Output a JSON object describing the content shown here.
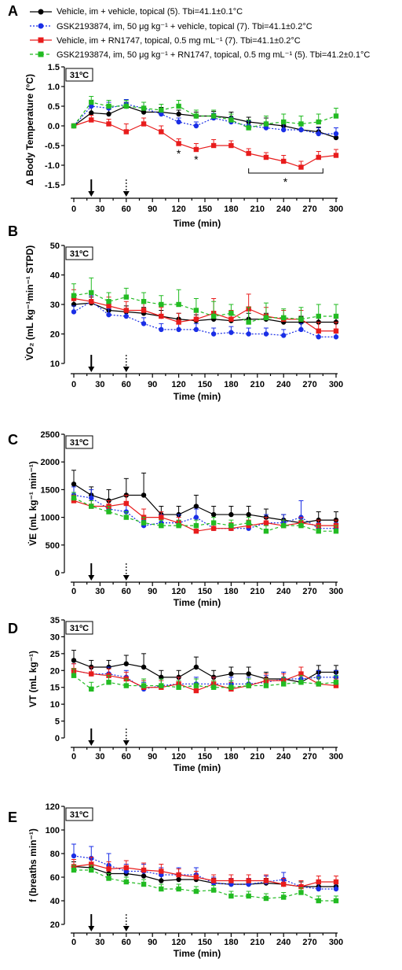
{
  "legend": [
    {
      "label": "Vehicle, im + vehicle, topical (5). Tbi=41.1±0.1°C",
      "color": "#000000",
      "marker": "circle",
      "dash": "solid"
    },
    {
      "label": "GSK2193874, im, 50 μg kg⁻¹ + vehicle, topical (7). Tbi=41.1±0.2°C",
      "color": "#1a2ee6",
      "marker": "circle",
      "dash": "dotted"
    },
    {
      "label": "Vehicle, im + RN1747, topical, 0.5 mg mL⁻¹ (7). Tbi=41.1±0.2°C",
      "color": "#e81c1c",
      "marker": "square",
      "dash": "solid"
    },
    {
      "label": "GSK2193874, im, 50 μg kg⁻¹ + RN1747, topical, 0.5 mg mL⁻¹ (5). Tbi=41.2±0.1°C",
      "color": "#22bb22",
      "marker": "square",
      "dash": "dashed"
    }
  ],
  "chart_data": [
    {
      "type": "line",
      "panel": "A",
      "temp_label": "31ºC",
      "ylabel": "Δ Body Temperature (°C)",
      "xlabel": "Time (min)",
      "ylim": [
        -1.5,
        1.5
      ],
      "yticks": [
        "1.5",
        "1.0",
        "0.5",
        "0.0",
        "-0.5",
        "-1.0",
        "-1.5"
      ],
      "yticks_values": [
        1.5,
        1.0,
        0.5,
        0.0,
        -0.5,
        -1.0,
        -1.5
      ],
      "x": [
        0,
        20,
        40,
        60,
        80,
        100,
        120,
        140,
        160,
        180,
        200,
        220,
        240,
        260,
        280,
        300
      ],
      "xticks": [
        0,
        30,
        60,
        90,
        120,
        150,
        180,
        210,
        240,
        270,
        300
      ],
      "series": [
        {
          "values": [
            0,
            0.33,
            0.3,
            0.5,
            0.35,
            0.35,
            0.3,
            0.25,
            0.25,
            0.2,
            0.1,
            0.05,
            0,
            -0.1,
            -0.15,
            -0.3
          ],
          "err": [
            0,
            0.15,
            0.12,
            0.1,
            0.15,
            0.12,
            0.1,
            0.1,
            0.12,
            0.15,
            0.12,
            0.15,
            0.15,
            0.15,
            0.12,
            0.12
          ]
        },
        {
          "values": [
            0,
            0.5,
            0.45,
            0.55,
            0.45,
            0.3,
            0.1,
            0,
            0.2,
            0.1,
            0,
            -0.05,
            -0.1,
            -0.1,
            -0.2,
            -0.2
          ],
          "err": [
            0,
            0.15,
            0.15,
            0.12,
            0.15,
            0.12,
            0.1,
            0.1,
            0.12,
            0.12,
            0.12,
            0.12,
            0.15,
            0.15,
            0.15,
            0.15
          ]
        },
        {
          "values": [
            0,
            0.15,
            0.05,
            -0.15,
            0.05,
            -0.15,
            -0.45,
            -0.6,
            -0.5,
            -0.5,
            -0.7,
            -0.8,
            -0.9,
            -1.05,
            -0.8,
            -0.75
          ],
          "err": [
            0,
            0.12,
            0.12,
            0.2,
            0.15,
            0.15,
            0.12,
            0.15,
            0.15,
            0.12,
            0.12,
            0.12,
            0.15,
            0.15,
            0.15,
            0.15
          ]
        },
        {
          "values": [
            0,
            0.6,
            0.5,
            0.5,
            0.45,
            0.4,
            0.5,
            0.25,
            0.25,
            0.15,
            -0.05,
            0.05,
            0.1,
            0.05,
            0.1,
            0.25
          ],
          "err": [
            0,
            0.15,
            0.15,
            0.15,
            0.15,
            0.15,
            0.15,
            0.15,
            0.15,
            0.15,
            0.2,
            0.2,
            0.2,
            0.2,
            0.2,
            0.2
          ]
        }
      ],
      "annotations": [
        "*",
        "*",
        "*"
      ]
    },
    {
      "type": "line",
      "panel": "B",
      "temp_label": "31ºC",
      "ylabel": "V̇O₂ (mL kg⁻¹min⁻¹ STPD)",
      "xlabel": "Time (min)",
      "ylim": [
        10,
        50
      ],
      "yticks": [
        "50",
        "40",
        "30",
        "20",
        "10"
      ],
      "yticks_values": [
        50,
        40,
        30,
        20,
        10
      ],
      "x": [
        0,
        20,
        40,
        60,
        80,
        100,
        120,
        140,
        160,
        180,
        200,
        220,
        240,
        260,
        280,
        300
      ],
      "xticks": [
        0,
        30,
        60,
        90,
        120,
        150,
        180,
        210,
        240,
        270,
        300
      ],
      "series": [
        {
          "values": [
            30,
            30.5,
            28,
            27.5,
            27,
            26,
            25,
            24.5,
            25,
            24.5,
            25,
            25,
            24,
            24,
            24,
            24
          ],
          "err": [
            2,
            2,
            2,
            2,
            2,
            2,
            2,
            2,
            2,
            2,
            2,
            2,
            2,
            2,
            2,
            2
          ]
        },
        {
          "values": [
            27.5,
            31,
            26.5,
            26,
            23.5,
            21.5,
            21.5,
            21.5,
            20,
            20.5,
            20,
            20,
            19.5,
            21.5,
            19,
            19
          ],
          "err": [
            2,
            2,
            2,
            2,
            2,
            2,
            2,
            2,
            2,
            2,
            2,
            2,
            2,
            2,
            2,
            2
          ]
        },
        {
          "values": [
            32,
            31,
            29.5,
            28,
            28,
            26,
            24,
            25,
            27,
            25,
            28.5,
            26,
            25,
            25,
            21,
            21
          ],
          "err": [
            3,
            3,
            3,
            3,
            3,
            3,
            3,
            3,
            5,
            3,
            5,
            3,
            3,
            3,
            3,
            3
          ]
        },
        {
          "values": [
            33,
            34,
            31,
            32.5,
            31,
            30,
            30,
            28,
            26,
            27,
            24,
            25.5,
            25.5,
            25,
            26,
            26
          ],
          "err": [
            4,
            5,
            3,
            3,
            3,
            3,
            5,
            4,
            5,
            3,
            5,
            5,
            3,
            4,
            4,
            4
          ]
        }
      ]
    },
    {
      "type": "line",
      "panel": "C",
      "temp_label": "31ºC",
      "ylabel": "V̇E (mL kg⁻¹ min⁻¹)",
      "xlabel": "Time (min)",
      "ylim": [
        0,
        2500
      ],
      "yticks": [
        "2500",
        "2000",
        "1500",
        "1000",
        "500",
        "0"
      ],
      "yticks_values": [
        2500,
        2000,
        1500,
        1000,
        500,
        0
      ],
      "x": [
        0,
        20,
        40,
        60,
        80,
        100,
        120,
        140,
        160,
        180,
        200,
        220,
        240,
        260,
        280,
        300
      ],
      "xticks": [
        0,
        30,
        60,
        90,
        120,
        150,
        180,
        210,
        240,
        270,
        300
      ],
      "series": [
        {
          "values": [
            1600,
            1400,
            1300,
            1400,
            1400,
            1050,
            1050,
            1200,
            1050,
            1050,
            1050,
            1000,
            950,
            900,
            950,
            950
          ],
          "err": [
            250,
            150,
            200,
            300,
            400,
            150,
            150,
            200,
            150,
            150,
            150,
            150,
            100,
            100,
            150,
            150
          ]
        },
        {
          "values": [
            1400,
            1350,
            1150,
            1100,
            850,
            900,
            900,
            1000,
            800,
            800,
            800,
            900,
            900,
            1000,
            800,
            800
          ],
          "err": [
            150,
            150,
            150,
            150,
            100,
            150,
            150,
            150,
            100,
            100,
            100,
            150,
            150,
            300,
            100,
            100
          ]
        },
        {
          "values": [
            1300,
            1200,
            1200,
            1250,
            1000,
            1000,
            900,
            750,
            800,
            800,
            850,
            900,
            850,
            900,
            850,
            850
          ],
          "err": [
            100,
            100,
            100,
            150,
            150,
            100,
            100,
            100,
            100,
            100,
            100,
            100,
            100,
            100,
            100,
            100
          ]
        },
        {
          "values": [
            1350,
            1200,
            1100,
            1000,
            900,
            850,
            850,
            850,
            900,
            850,
            900,
            750,
            850,
            850,
            750,
            750
          ],
          "err": [
            100,
            100,
            100,
            100,
            100,
            100,
            100,
            100,
            100,
            100,
            100,
            100,
            100,
            100,
            100,
            100
          ]
        }
      ]
    },
    {
      "type": "line",
      "panel": "D",
      "temp_label": "31ºC",
      "ylabel": "VT (mL kg⁻¹)",
      "xlabel": "Time (min)",
      "ylim": [
        0,
        35
      ],
      "yticks": [
        "35",
        "30",
        "25",
        "20",
        "15",
        "10",
        "5",
        "0"
      ],
      "yticks_values": [
        35,
        30,
        25,
        20,
        15,
        10,
        5,
        0
      ],
      "x": [
        0,
        20,
        40,
        60,
        80,
        100,
        120,
        140,
        160,
        180,
        200,
        220,
        240,
        260,
        280,
        300
      ],
      "xticks": [
        0,
        30,
        60,
        90,
        120,
        150,
        180,
        210,
        240,
        270,
        300
      ],
      "series": [
        {
          "values": [
            23,
            21,
            21,
            22,
            21,
            18,
            18,
            21,
            18,
            19,
            19,
            17.5,
            17.5,
            16.5,
            19.5,
            19.5
          ],
          "err": [
            3,
            2,
            2,
            2.5,
            4,
            2,
            2,
            3,
            2,
            2,
            2,
            2,
            2,
            2,
            2,
            2
          ]
        },
        {
          "values": [
            20,
            19,
            19,
            18,
            14.5,
            15.5,
            16,
            16,
            16,
            16,
            16,
            16.5,
            17.5,
            17.5,
            18,
            18
          ],
          "err": [
            2,
            2,
            2,
            2,
            2,
            2,
            2,
            2,
            2,
            2,
            2,
            2,
            2,
            2,
            2,
            2
          ]
        },
        {
          "values": [
            20,
            19,
            18.5,
            17.5,
            15,
            15,
            16,
            14,
            16,
            14.5,
            15.5,
            17,
            17,
            19,
            16,
            15.5
          ],
          "err": [
            2,
            2,
            2,
            2,
            2,
            2,
            2,
            2,
            2,
            2,
            2,
            2,
            2,
            2,
            2,
            2
          ]
        },
        {
          "values": [
            18.5,
            14.5,
            16.5,
            15.5,
            15.5,
            15.5,
            15,
            15.5,
            15,
            15,
            15.5,
            15.5,
            16,
            16.5,
            16,
            16.5
          ],
          "err": [
            2,
            2,
            2,
            2,
            2,
            2,
            2,
            2,
            2,
            2,
            2,
            2,
            2,
            2,
            2,
            2
          ]
        }
      ]
    },
    {
      "type": "line",
      "panel": "E",
      "temp_label": "31ºC",
      "ylabel": "f (breaths min⁻¹)",
      "xlabel": "Time (min)",
      "ylim": [
        20,
        120
      ],
      "yticks": [
        "120",
        "100",
        "80",
        "60",
        "40",
        "20"
      ],
      "yticks_values": [
        120,
        100,
        80,
        60,
        40,
        20
      ],
      "x": [
        0,
        20,
        40,
        60,
        80,
        100,
        120,
        140,
        160,
        180,
        200,
        220,
        240,
        260,
        280,
        300
      ],
      "xticks": [
        0,
        30,
        60,
        90,
        120,
        150,
        180,
        210,
        240,
        270,
        300
      ],
      "series": [
        {
          "values": [
            69,
            68,
            63,
            63,
            61,
            57,
            58,
            58,
            55,
            54,
            54,
            55,
            54,
            52,
            52,
            52
          ],
          "err": [
            4,
            4,
            4,
            4,
            4,
            4,
            4,
            4,
            4,
            4,
            4,
            4,
            4,
            4,
            4,
            4
          ]
        },
        {
          "values": [
            78,
            76,
            70,
            65,
            65,
            62,
            62,
            62,
            55,
            54,
            54,
            56,
            58,
            52,
            50,
            50
          ],
          "err": [
            10,
            10,
            10,
            6,
            6,
            6,
            6,
            6,
            5,
            5,
            5,
            5,
            6,
            5,
            5,
            5
          ]
        },
        {
          "values": [
            69,
            71,
            67,
            68,
            66,
            65,
            62,
            60,
            57,
            57,
            57,
            57,
            54,
            52,
            56,
            56
          ],
          "err": [
            6,
            6,
            6,
            6,
            6,
            6,
            5,
            5,
            5,
            5,
            5,
            5,
            5,
            5,
            5,
            5
          ]
        },
        {
          "values": [
            66,
            66,
            59,
            56,
            54,
            50,
            50,
            48,
            49,
            44,
            44,
            42,
            43,
            47,
            40,
            40
          ],
          "err": [
            4,
            4,
            4,
            4,
            4,
            4,
            4,
            4,
            4,
            4,
            4,
            4,
            4,
            4,
            4,
            4
          ]
        }
      ]
    }
  ]
}
